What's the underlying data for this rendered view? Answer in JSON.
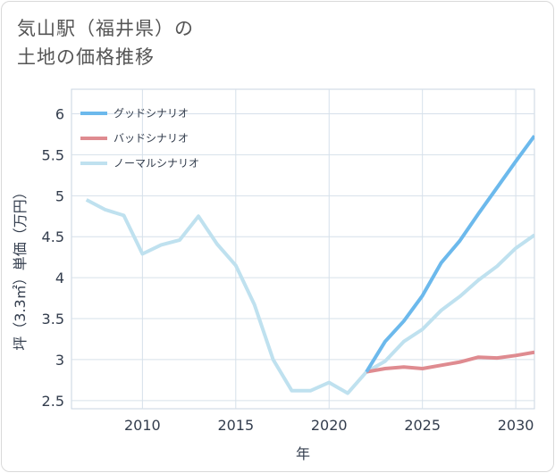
{
  "title": {
    "line1": "気山駅（福井県）の",
    "line2": "土地の価格推移"
  },
  "chart_data": {
    "type": "line",
    "title": "気山駅（福井県）の土地の価格推移",
    "xlabel": "年",
    "ylabel": "坪（3.3㎡）単価（万円）",
    "xlim": [
      2006.2,
      2031
    ],
    "ylim": [
      2.4,
      6.3
    ],
    "xticks": [
      2010,
      2015,
      2020,
      2025,
      2030
    ],
    "yticks": [
      2.5,
      3,
      3.5,
      4,
      4.5,
      5,
      5.5,
      6
    ],
    "ytick_labels": [
      "2.5",
      "3",
      "3.5",
      "4",
      "4.5",
      "5",
      "5.5",
      "6"
    ],
    "grid": true,
    "legend_position": "top-left",
    "series": [
      {
        "name": "グッドシナリオ",
        "color": "#6cb9ec",
        "x": [
          2022,
          2023,
          2024,
          2025,
          2026,
          2027,
          2028,
          2029,
          2030,
          2031
        ],
        "values": [
          2.85,
          3.22,
          3.47,
          3.78,
          4.18,
          4.45,
          4.78,
          5.1,
          5.42,
          5.73
        ]
      },
      {
        "name": "バッドシナリオ",
        "color": "#df8b90",
        "x": [
          2022,
          2023,
          2024,
          2025,
          2026,
          2027,
          2028,
          2029,
          2030,
          2031
        ],
        "values": [
          2.85,
          2.89,
          2.91,
          2.89,
          2.93,
          2.97,
          3.03,
          3.02,
          3.05,
          3.09
        ]
      },
      {
        "name": "ノーマルシナリオ",
        "color": "#bfe1ef",
        "x": [
          2007,
          2008,
          2009,
          2010,
          2011,
          2012,
          2013,
          2014,
          2015,
          2016,
          2017,
          2018,
          2019,
          2020,
          2021,
          2022,
          2023,
          2024,
          2025,
          2026,
          2027,
          2028,
          2029,
          2030,
          2031
        ],
        "values": [
          4.95,
          4.83,
          4.76,
          4.29,
          4.4,
          4.46,
          4.75,
          4.41,
          4.15,
          3.67,
          3.0,
          2.62,
          2.62,
          2.72,
          2.59,
          2.85,
          2.98,
          3.22,
          3.37,
          3.6,
          3.77,
          3.97,
          4.14,
          4.36,
          4.52
        ]
      }
    ]
  }
}
